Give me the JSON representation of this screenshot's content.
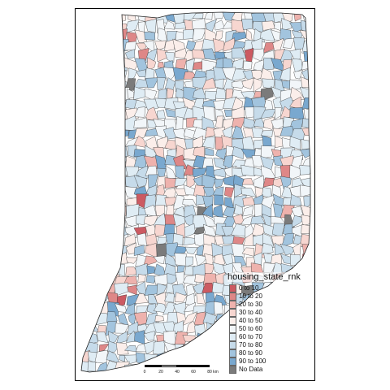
{
  "legend": {
    "title": "housing_state_rnk",
    "items": [
      {
        "label": "0 to 10",
        "color": "#cc5a62"
      },
      {
        "label": "10 to 20",
        "color": "#de8787"
      },
      {
        "label": "20 to 30",
        "color": "#eeb2ad"
      },
      {
        "label": "30 to 40",
        "color": "#f7d6d0"
      },
      {
        "label": "40 to 50",
        "color": "#fbeeea"
      },
      {
        "label": "50 to 60",
        "color": "#f2f6f9"
      },
      {
        "label": "60 to 70",
        "color": "#dfecf4"
      },
      {
        "label": "70 to 80",
        "color": "#c6dbea"
      },
      {
        "label": "80 to 90",
        "color": "#a2c4de"
      },
      {
        "label": "90 to 100",
        "color": "#79a8cf"
      },
      {
        "label": "No Data",
        "color": "#7b7b7b"
      }
    ]
  },
  "scalebar": {
    "ticks": [
      "0",
      "20",
      "40",
      "60",
      "80 km"
    ]
  }
}
